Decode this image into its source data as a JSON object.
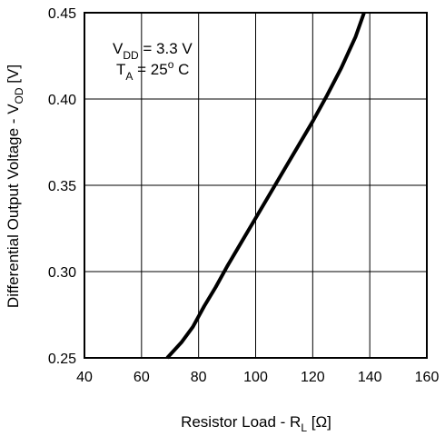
{
  "chart_data": {
    "type": "line",
    "xlabel": "Resistor Load - R",
    "xlabel_sub": "L",
    "xlabel_unit": " [Ω]",
    "ylabel": "Differential Output Voltage - V",
    "ylabel_sub": "OD",
    "ylabel_unit": " [V]",
    "xlim": [
      40,
      160
    ],
    "ylim": [
      0.25,
      0.45
    ],
    "xticks": [
      40,
      60,
      80,
      100,
      120,
      140,
      160
    ],
    "xtick_labels": [
      "40",
      "60",
      "80",
      "100",
      "120",
      "140",
      "160"
    ],
    "yticks": [
      0.25,
      0.3,
      0.35,
      0.4,
      0.45
    ],
    "ytick_labels": [
      "0.25",
      "0.30",
      "0.35",
      "0.40",
      "0.45"
    ],
    "grid": true,
    "series": [
      {
        "x": [
          69,
          74,
          78,
          82,
          86,
          90,
          95,
          100,
          105,
          110,
          115,
          120,
          125,
          130,
          135,
          138
        ],
        "y": [
          0.25,
          0.259,
          0.268,
          0.28,
          0.291,
          0.303,
          0.317,
          0.331,
          0.345,
          0.359,
          0.373,
          0.387,
          0.402,
          0.418,
          0.436,
          0.45
        ]
      }
    ],
    "annotation": {
      "line1_main": "V",
      "line1_sub": "DD",
      "line1_rest": " = 3.3 V",
      "line2_main": "T",
      "line2_sub": "A",
      "line2_rest": " = 25",
      "line2_sup": "o",
      "line2_end": " C"
    }
  }
}
